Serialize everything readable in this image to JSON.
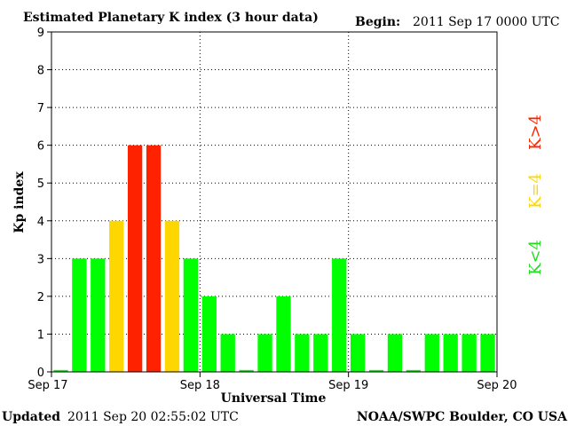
{
  "header": {
    "title": "Estimated Planetary K index (3 hour data)",
    "begin_label": "Begin:",
    "begin_value": "2011 Sep 17 0000 UTC"
  },
  "footer": {
    "updated_label": "Updated",
    "updated_value": "2011 Sep 20 02:55:02 UTC",
    "source": "NOAA/SWPC Boulder, CO USA"
  },
  "legend": {
    "high": "K>4",
    "mid": "K=4",
    "low": "K<4"
  },
  "colors": {
    "low": "#00ff00",
    "mid": "#ffd700",
    "high": "#ff2200",
    "axis": "#000000"
  },
  "chart_data": {
    "type": "bar",
    "title": "Estimated Planetary K index (3 hour data)",
    "xlabel": "Universal Time",
    "ylabel": "Kp index",
    "ylim": [
      0,
      9
    ],
    "yticks": [
      "0",
      "1",
      "2",
      "3",
      "4",
      "5",
      "6",
      "7",
      "8",
      "9"
    ],
    "xticks": [
      "Sep 17",
      "Sep 18",
      "Sep 19",
      "Sep 20"
    ],
    "grid": true,
    "values": [
      0.05,
      3,
      3,
      4,
      6,
      6,
      4,
      3,
      2,
      1,
      0.05,
      1,
      2,
      1,
      1,
      3,
      1,
      0.05,
      1,
      0.05,
      1,
      1,
      1,
      1
    ]
  }
}
